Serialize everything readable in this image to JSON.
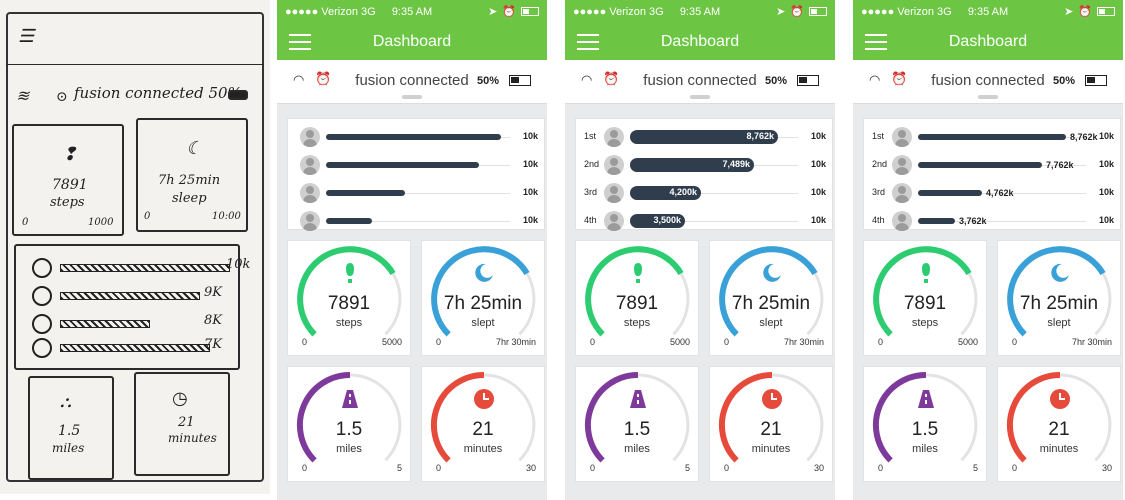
{
  "sketch": {
    "status_text": "fusion connected 50%",
    "steps_value": "7891",
    "steps_unit": "steps",
    "steps_min": "0",
    "steps_max": "1000",
    "sleep_value": "7h 25min",
    "sleep_unit": "sleep",
    "sleep_min": "0",
    "sleep_max": "10:00",
    "bars": [
      "10k",
      "9K",
      "8K",
      "7K"
    ],
    "distance_value": "1.5",
    "distance_unit": "miles",
    "time_value": "21",
    "time_unit": "minutes"
  },
  "phones": [
    {
      "status": {
        "carrier": "●●●●● Verizon 3G",
        "time": "9:35 AM"
      },
      "title": "Dashboard",
      "conn_text": "fusion connected",
      "battery": "50%",
      "show_ranks": false,
      "leaderboard": [
        {
          "rank": "",
          "value_label": "",
          "max": "10k",
          "fraction": 0.95
        },
        {
          "rank": "",
          "value_label": "",
          "max": "10k",
          "fraction": 0.83
        },
        {
          "rank": "",
          "value_label": "",
          "max": "10k",
          "fraction": 0.43
        },
        {
          "rank": "",
          "value_label": "",
          "max": "10k",
          "fraction": 0.25
        }
      ],
      "gauges": {
        "steps": {
          "value": "7891",
          "unit": "steps",
          "min": "0",
          "max": "5000",
          "color": "#2ecc71",
          "fraction": 0.72
        },
        "sleep": {
          "value": "7h 25min",
          "unit": "slept",
          "min": "0",
          "max": "7hr 30min",
          "color": "#3aa0d8",
          "fraction": 0.72
        },
        "distance": {
          "value": "1.5",
          "unit": "miles",
          "min": "0",
          "max": "5",
          "color": "#7d3a9a",
          "fraction": 0.5
        },
        "time": {
          "value": "21",
          "unit": "minutes",
          "min": "0",
          "max": "30",
          "color": "#e64a3b",
          "fraction": 0.5
        }
      }
    },
    {
      "status": {
        "carrier": "●●●●● Verizon 3G",
        "time": "9:35 AM"
      },
      "title": "Dashboard",
      "conn_text": "fusion connected",
      "battery": "50%",
      "show_ranks": true,
      "leaderboard": [
        {
          "rank": "1st",
          "value_label": "8,762k",
          "max": "10k",
          "fraction": 0.88,
          "style": "big"
        },
        {
          "rank": "2nd",
          "value_label": "7,489k",
          "max": "10k",
          "fraction": 0.74,
          "style": "big"
        },
        {
          "rank": "3rd",
          "value_label": "4,200k",
          "max": "10k",
          "fraction": 0.42,
          "style": "big"
        },
        {
          "rank": "4th",
          "value_label": "3,500k",
          "max": "10k",
          "fraction": 0.33,
          "style": "big"
        }
      ],
      "gauges": {
        "steps": {
          "value": "7891",
          "unit": "steps",
          "min": "0",
          "max": "5000",
          "color": "#2ecc71",
          "fraction": 0.72
        },
        "sleep": {
          "value": "7h 25min",
          "unit": "slept",
          "min": "0",
          "max": "7hr 30min",
          "color": "#3aa0d8",
          "fraction": 0.72
        },
        "distance": {
          "value": "1.5",
          "unit": "miles",
          "min": "0",
          "max": "5",
          "color": "#7d3a9a",
          "fraction": 0.5
        },
        "time": {
          "value": "21",
          "unit": "minutes",
          "min": "0",
          "max": "30",
          "color": "#e64a3b",
          "fraction": 0.5
        }
      }
    },
    {
      "status": {
        "carrier": "●●●●● Verizon 3G",
        "time": "9:35 AM"
      },
      "title": "Dashboard",
      "conn_text": "fusion connected",
      "battery": "50%",
      "show_ranks": true,
      "leaderboard": [
        {
          "rank": "1st",
          "value_label": "8,762k",
          "max": "10k",
          "fraction": 0.88,
          "style": "thin"
        },
        {
          "rank": "2nd",
          "value_label": "7,762k",
          "max": "10k",
          "fraction": 0.74,
          "style": "thin"
        },
        {
          "rank": "3rd",
          "value_label": "4,762k",
          "max": "10k",
          "fraction": 0.38,
          "style": "thin"
        },
        {
          "rank": "4th",
          "value_label": "3,762k",
          "max": "10k",
          "fraction": 0.22,
          "style": "thin"
        }
      ],
      "gauges": {
        "steps": {
          "value": "7891",
          "unit": "steps",
          "min": "0",
          "max": "5000",
          "color": "#2ecc71",
          "fraction": 0.72
        },
        "sleep": {
          "value": "7h 25min",
          "unit": "slept",
          "min": "0",
          "max": "7hr 30min",
          "color": "#3aa0d8",
          "fraction": 0.72
        },
        "distance": {
          "value": "1.5",
          "unit": "miles",
          "min": "0",
          "max": "5",
          "color": "#7d3a9a",
          "fraction": 0.5
        },
        "time": {
          "value": "21",
          "unit": "minutes",
          "min": "0",
          "max": "30",
          "color": "#e64a3b",
          "fraction": 0.5
        }
      }
    }
  ]
}
